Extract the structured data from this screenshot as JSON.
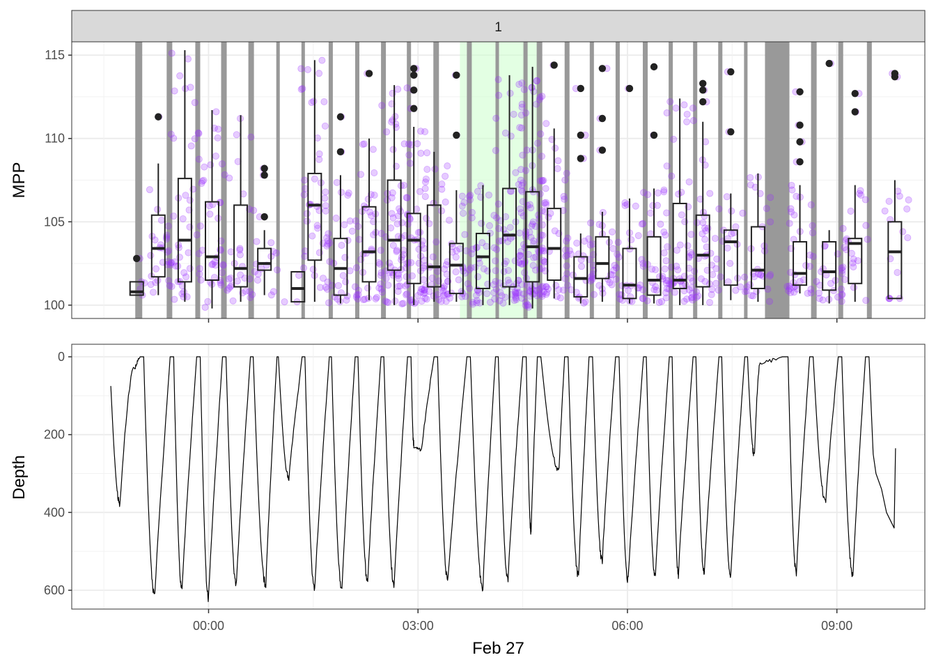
{
  "chart_data": {
    "type": "faceted-timeseries",
    "facet_label": "1",
    "x_label": "Feb 27",
    "x_axis": {
      "unit": "hours since 00:00 Feb 27",
      "range": [
        -1.96,
        10.26
      ],
      "ticks": [
        0,
        3,
        6,
        9
      ],
      "tick_labels": [
        "00:00",
        "03:00",
        "06:00",
        "09:00"
      ]
    },
    "panels": [
      {
        "name": "MPP",
        "type": "boxplot-jitter",
        "ylabel": "MPP",
        "ylim": [
          99.2,
          115.8
        ],
        "y_ticks": [
          100,
          105,
          110,
          115
        ],
        "colors": {
          "points": "#9b30ff",
          "box": "#222222",
          "outlier": "#222222",
          "dive_band": "#999999",
          "highlight": "#ccffcc"
        },
        "highlight_window": [
          3.6,
          4.75
        ],
        "dive_bands": [
          [
            -1.05,
            -0.95
          ],
          [
            -0.6,
            -0.52
          ],
          [
            -0.19,
            -0.12
          ],
          [
            0.18,
            0.26
          ],
          [
            0.57,
            0.65
          ],
          [
            0.97,
            1.02
          ],
          [
            1.33,
            1.38
          ],
          [
            1.72,
            1.78
          ],
          [
            2.1,
            2.16
          ],
          [
            2.47,
            2.54
          ],
          [
            2.84,
            2.9
          ],
          [
            3.22,
            3.3
          ],
          [
            3.7,
            3.77
          ],
          [
            4.11,
            4.16
          ],
          [
            4.51,
            4.57
          ],
          [
            4.7,
            4.78
          ],
          [
            5.1,
            5.17
          ],
          [
            5.46,
            5.52
          ],
          [
            5.83,
            5.89
          ],
          [
            6.22,
            6.29
          ],
          [
            6.59,
            6.65
          ],
          [
            6.94,
            7
          ],
          [
            7.3,
            7.36
          ],
          [
            7.67,
            7.72
          ],
          [
            7.97,
            8.32
          ],
          [
            8.63,
            8.71
          ],
          [
            9.02,
            9.09
          ],
          [
            9.43,
            9.5
          ]
        ],
        "boxes": [
          {
            "x": -1.03,
            "min": 100.6,
            "q1": 100.6,
            "median": 100.8,
            "q3": 101.4,
            "max": 101.4,
            "outliers": [
              102.8
            ],
            "n": 3
          },
          {
            "x": -0.72,
            "min": 100.6,
            "q1": 101.7,
            "median": 103.4,
            "q3": 105.4,
            "max": 108.5,
            "outliers": [
              111.3
            ],
            "n": 30
          },
          {
            "x": -0.34,
            "min": 100.2,
            "q1": 101.4,
            "median": 103.9,
            "q3": 107.6,
            "max": 115.3,
            "outliers": [],
            "n": 40
          },
          {
            "x": 0.05,
            "min": 99.8,
            "q1": 101.5,
            "median": 102.9,
            "q3": 106.2,
            "max": 111.7,
            "outliers": [],
            "n": 45
          },
          {
            "x": 0.46,
            "min": 100.2,
            "q1": 101.1,
            "median": 102.2,
            "q3": 106.0,
            "max": 111.4,
            "outliers": [],
            "n": 30
          },
          {
            "x": 0.8,
            "min": 100.6,
            "q1": 102.1,
            "median": 102.5,
            "q3": 103.4,
            "max": 104.5,
            "outliers": [
              105.3,
              107.8,
              108.2
            ],
            "n": 14
          },
          {
            "x": 1.28,
            "min": 100.2,
            "q1": 100.2,
            "median": 101.0,
            "q3": 102.0,
            "max": 102.0,
            "outliers": [],
            "n": 3
          },
          {
            "x": 1.52,
            "min": 100.2,
            "q1": 102.7,
            "median": 106.0,
            "q3": 107.9,
            "max": 114.7,
            "outliers": [],
            "n": 45
          },
          {
            "x": 1.89,
            "min": 100.1,
            "q1": 100.6,
            "median": 102.2,
            "q3": 104.0,
            "max": 107.8,
            "outliers": [
              109.2,
              111.3
            ],
            "n": 30
          },
          {
            "x": 2.3,
            "min": 100.3,
            "q1": 101.4,
            "median": 103.2,
            "q3": 105.9,
            "max": 110.0,
            "outliers": [
              113.9
            ],
            "n": 45
          },
          {
            "x": 2.66,
            "min": 100.0,
            "q1": 102.1,
            "median": 103.9,
            "q3": 107.5,
            "max": 113.2,
            "outliers": [],
            "n": 65
          },
          {
            "x": 2.94,
            "min": 100.0,
            "q1": 101.3,
            "median": 103.9,
            "q3": 105.5,
            "max": 110.7,
            "outliers": [
              111.8,
              112.9,
              113.8,
              114.2
            ],
            "n": 50
          },
          {
            "x": 3.23,
            "min": 100.2,
            "q1": 101.1,
            "median": 102.3,
            "q3": 106.0,
            "max": 109.2,
            "outliers": [],
            "n": 45
          },
          {
            "x": 3.55,
            "min": 100.2,
            "q1": 100.7,
            "median": 102.4,
            "q3": 103.7,
            "max": 106.9,
            "outliers": [
              110.2,
              113.8
            ],
            "n": 35
          },
          {
            "x": 3.93,
            "min": 100.0,
            "q1": 101.0,
            "median": 102.9,
            "q3": 104.3,
            "max": 107.2,
            "outliers": [],
            "n": 45
          },
          {
            "x": 4.31,
            "min": 100.0,
            "q1": 101.1,
            "median": 104.2,
            "q3": 107.0,
            "max": 113.8,
            "outliers": [],
            "n": 70
          },
          {
            "x": 4.64,
            "min": 99.8,
            "q1": 101.4,
            "median": 103.5,
            "q3": 106.8,
            "max": 114.3,
            "outliers": [],
            "n": 110
          },
          {
            "x": 4.95,
            "min": 100.4,
            "q1": 101.5,
            "median": 103.4,
            "q3": 105.8,
            "max": 110.6,
            "outliers": [
              114.4
            ],
            "n": 40
          },
          {
            "x": 5.33,
            "min": 100.1,
            "q1": 100.5,
            "median": 101.6,
            "q3": 102.9,
            "max": 104.3,
            "outliers": [
              108.8,
              110.2,
              113.0
            ],
            "n": 25
          },
          {
            "x": 5.64,
            "min": 100.2,
            "q1": 101.6,
            "median": 102.5,
            "q3": 104.1,
            "max": 105.6,
            "outliers": [
              109.3,
              111.2,
              114.2
            ],
            "n": 25
          },
          {
            "x": 6.03,
            "min": 100.1,
            "q1": 100.4,
            "median": 101.2,
            "q3": 103.4,
            "max": 106.4,
            "outliers": [
              113.0
            ],
            "n": 30
          },
          {
            "x": 6.38,
            "min": 100.1,
            "q1": 100.6,
            "median": 101.5,
            "q3": 104.1,
            "max": 107.0,
            "outliers": [
              110.2,
              114.3
            ],
            "n": 35
          },
          {
            "x": 6.75,
            "min": 100.0,
            "q1": 101.0,
            "median": 101.5,
            "q3": 106.1,
            "max": 112.4,
            "outliers": [],
            "n": 50
          },
          {
            "x": 7.08,
            "min": 100.0,
            "q1": 101.1,
            "median": 103.0,
            "q3": 105.4,
            "max": 111.0,
            "outliers": [
              112.2,
              112.9,
              113.3
            ],
            "n": 45
          },
          {
            "x": 7.48,
            "min": 100.3,
            "q1": 101.2,
            "median": 103.8,
            "q3": 104.5,
            "max": 106.7,
            "outliers": [
              110.4,
              114.0
            ],
            "n": 20
          },
          {
            "x": 7.87,
            "min": 100.2,
            "q1": 101.0,
            "median": 102.1,
            "q3": 104.7,
            "max": 107.9,
            "outliers": [],
            "n": 30
          },
          {
            "x": 8.47,
            "min": 100.7,
            "q1": 101.2,
            "median": 101.9,
            "q3": 103.8,
            "max": 107.2,
            "outliers": [
              108.6,
              109.8,
              110.8,
              112.8
            ],
            "n": 35
          },
          {
            "x": 8.89,
            "min": 100.1,
            "q1": 100.9,
            "median": 102.0,
            "q3": 103.8,
            "max": 104.5,
            "outliers": [
              114.5
            ],
            "n": 20
          },
          {
            "x": 9.26,
            "min": 100.2,
            "q1": 101.3,
            "median": 103.7,
            "q3": 104.0,
            "max": 107.2,
            "outliers": [
              111.6,
              112.7
            ],
            "n": 25
          },
          {
            "x": 9.83,
            "min": 100.4,
            "q1": 100.4,
            "median": 103.2,
            "q3": 105.0,
            "max": 107.5,
            "outliers": [
              113.7,
              113.9
            ],
            "n": 15
          }
        ]
      },
      {
        "name": "Depth",
        "type": "line",
        "ylabel": "Depth",
        "ylim": [
          0,
          650
        ],
        "y_reversed": true,
        "y_ticks": [
          0,
          200,
          400,
          600
        ],
        "line_color": "#000000",
        "start": {
          "x": -1.4,
          "y": 75
        },
        "end": {
          "x": 9.84,
          "y": 235
        },
        "dives": [
          {
            "surface": [
              -0.98,
              -0.93
            ],
            "bottom": [
              -1.27,
              380
            ],
            "pre_peak": [
              -1.06,
              30
            ]
          },
          {
            "surface": [
              -0.55,
              -0.5
            ],
            "bottom": [
              -0.77,
              615
            ]
          },
          {
            "surface": [
              -0.17,
              -0.12
            ],
            "bottom": [
              -0.38,
              600
            ]
          },
          {
            "surface": [
              0.2,
              0.25
            ],
            "bottom": [
              0.0,
              620
            ]
          },
          {
            "surface": [
              0.6,
              0.64
            ],
            "bottom": [
              0.4,
              585
            ]
          },
          {
            "surface": [
              0.98,
              1.0
            ],
            "bottom": [
              0.82,
              585
            ]
          },
          {
            "surface": [
              1.34,
              1.38
            ],
            "bottom": [
              1.15,
              315
            ]
          },
          {
            "surface": [
              1.73,
              1.76
            ],
            "bottom": [
              1.52,
              600
            ]
          },
          {
            "surface": [
              2.1,
              2.14
            ],
            "bottom": [
              1.91,
              600
            ]
          },
          {
            "surface": [
              2.47,
              2.51
            ],
            "bottom": [
              2.28,
              580
            ]
          },
          {
            "surface": [
              2.85,
              2.9
            ],
            "bottom": [
              2.66,
              590
            ]
          },
          {
            "surface": [
              3.23,
              3.28
            ],
            "bottom": [
              2.94,
              225
            ],
            "pre_peak": [
              3.05,
              240
            ]
          },
          {
            "surface": [
              3.7,
              3.75
            ],
            "bottom": [
              3.43,
              575
            ]
          },
          {
            "surface": [
              4.11,
              4.15
            ],
            "bottom": [
              3.93,
              595
            ]
          },
          {
            "surface": [
              4.5,
              4.55
            ],
            "bottom": [
              4.29,
              575
            ]
          },
          {
            "surface": [
              4.71,
              4.76
            ],
            "bottom": [
              4.62,
              450
            ]
          },
          {
            "surface": [
              5.1,
              5.15
            ],
            "bottom": [
              5.02,
              290
            ]
          },
          {
            "surface": [
              5.45,
              5.5
            ],
            "bottom": [
              5.3,
              565
            ]
          },
          {
            "surface": [
              5.83,
              5.88
            ],
            "bottom": [
              5.64,
              525
            ]
          },
          {
            "surface": [
              6.23,
              6.27
            ],
            "bottom": [
              6.01,
              575
            ]
          },
          {
            "surface": [
              6.6,
              6.64
            ],
            "bottom": [
              6.4,
              570
            ]
          },
          {
            "surface": [
              6.94,
              6.98
            ],
            "bottom": [
              6.73,
              560
            ]
          },
          {
            "surface": [
              7.31,
              7.35
            ],
            "bottom": [
              7.1,
              555
            ]
          },
          {
            "surface": [
              7.68,
              7.72
            ],
            "bottom": [
              7.48,
              570
            ]
          },
          {
            "surface": [
              8.22,
              8.3
            ],
            "bottom": [
              7.82,
              255
            ],
            "pre_peak": [
              7.9,
              20
            ]
          },
          {
            "surface": [
              8.61,
              8.66
            ],
            "bottom": [
              8.42,
              555
            ]
          },
          {
            "surface": [
              9.02,
              9.07
            ],
            "bottom": [
              8.84,
              375
            ]
          },
          {
            "surface": [
              9.41,
              9.46
            ],
            "bottom": [
              9.23,
              560
            ]
          }
        ]
      }
    ]
  }
}
